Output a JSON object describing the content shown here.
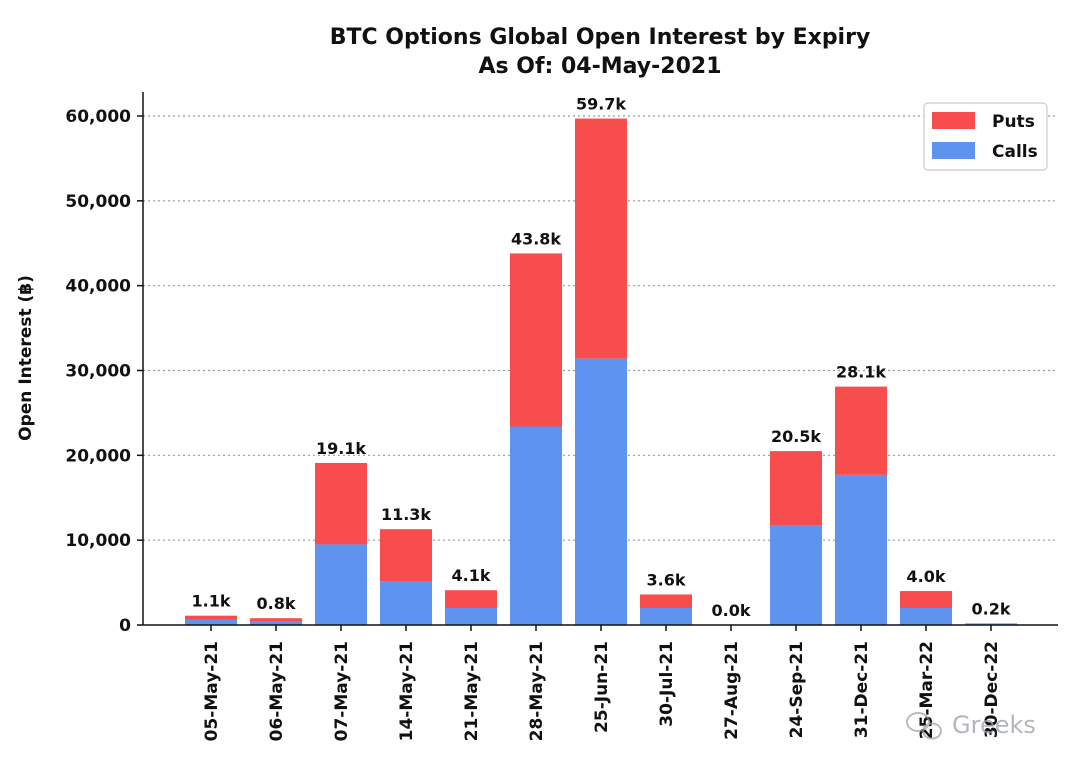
{
  "chart_data": {
    "type": "bar",
    "stacked": true,
    "title": "BTC Options Global Open Interest by Expiry",
    "subtitle": "As Of: 04-May-2021",
    "xlabel": "",
    "ylabel": "Open Interest (฿)",
    "ylim": [
      0,
      62500
    ],
    "yticks": [
      0,
      10000,
      20000,
      30000,
      40000,
      50000,
      60000
    ],
    "ytick_labels": [
      "0",
      "10,000",
      "20,000",
      "30,000",
      "40,000",
      "50,000",
      "60,000"
    ],
    "grid": "horizontal dotted",
    "legend_position": "top-right",
    "categories": [
      "05-May-21",
      "06-May-21",
      "07-May-21",
      "14-May-21",
      "21-May-21",
      "28-May-21",
      "25-Jun-21",
      "30-Jul-21",
      "27-Aug-21",
      "24-Sep-21",
      "31-Dec-21",
      "25-Mar-22",
      "30-Dec-22"
    ],
    "series": [
      {
        "name": "Calls",
        "color": "#5e93f0",
        "values": [
          600,
          400,
          9500,
          5100,
          2000,
          23400,
          31400,
          2000,
          0,
          11700,
          17700,
          2000,
          150
        ]
      },
      {
        "name": "Puts",
        "color": "#f74d4d",
        "values": [
          500,
          400,
          9600,
          6200,
          2100,
          20400,
          28300,
          1600,
          0,
          8800,
          10400,
          2000,
          50
        ]
      }
    ],
    "legend_order": [
      "Puts",
      "Calls"
    ],
    "total_labels": [
      "1.1k",
      "0.8k",
      "19.1k",
      "11.3k",
      "4.1k",
      "43.8k",
      "59.7k",
      "3.6k",
      "0.0k",
      "20.5k",
      "28.1k",
      "4.0k",
      "0.2k"
    ]
  },
  "watermark": {
    "icon": "wechat-icon",
    "text": "Greeks"
  }
}
